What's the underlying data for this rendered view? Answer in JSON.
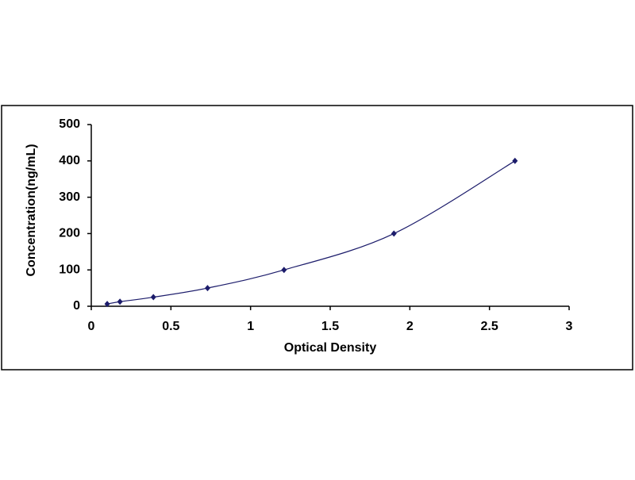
{
  "chart_data": {
    "type": "scatter",
    "x_label": "Optical Density",
    "y_label": "Concentration(ng/mL)",
    "x": [
      0.1,
      0.18,
      0.39,
      0.73,
      1.21,
      1.9,
      2.66
    ],
    "values": [
      6.25,
      12.5,
      25,
      50,
      100,
      200,
      400
    ],
    "color": "#1c1c6b",
    "smooth_line": true,
    "xlim": [
      0,
      3
    ],
    "xticks": [
      0,
      0.5,
      1,
      1.5,
      2,
      2.5,
      3
    ],
    "ylim": [
      0,
      500
    ],
    "yticks": [
      0,
      100,
      200,
      300,
      400,
      500
    ],
    "grid": false
  }
}
